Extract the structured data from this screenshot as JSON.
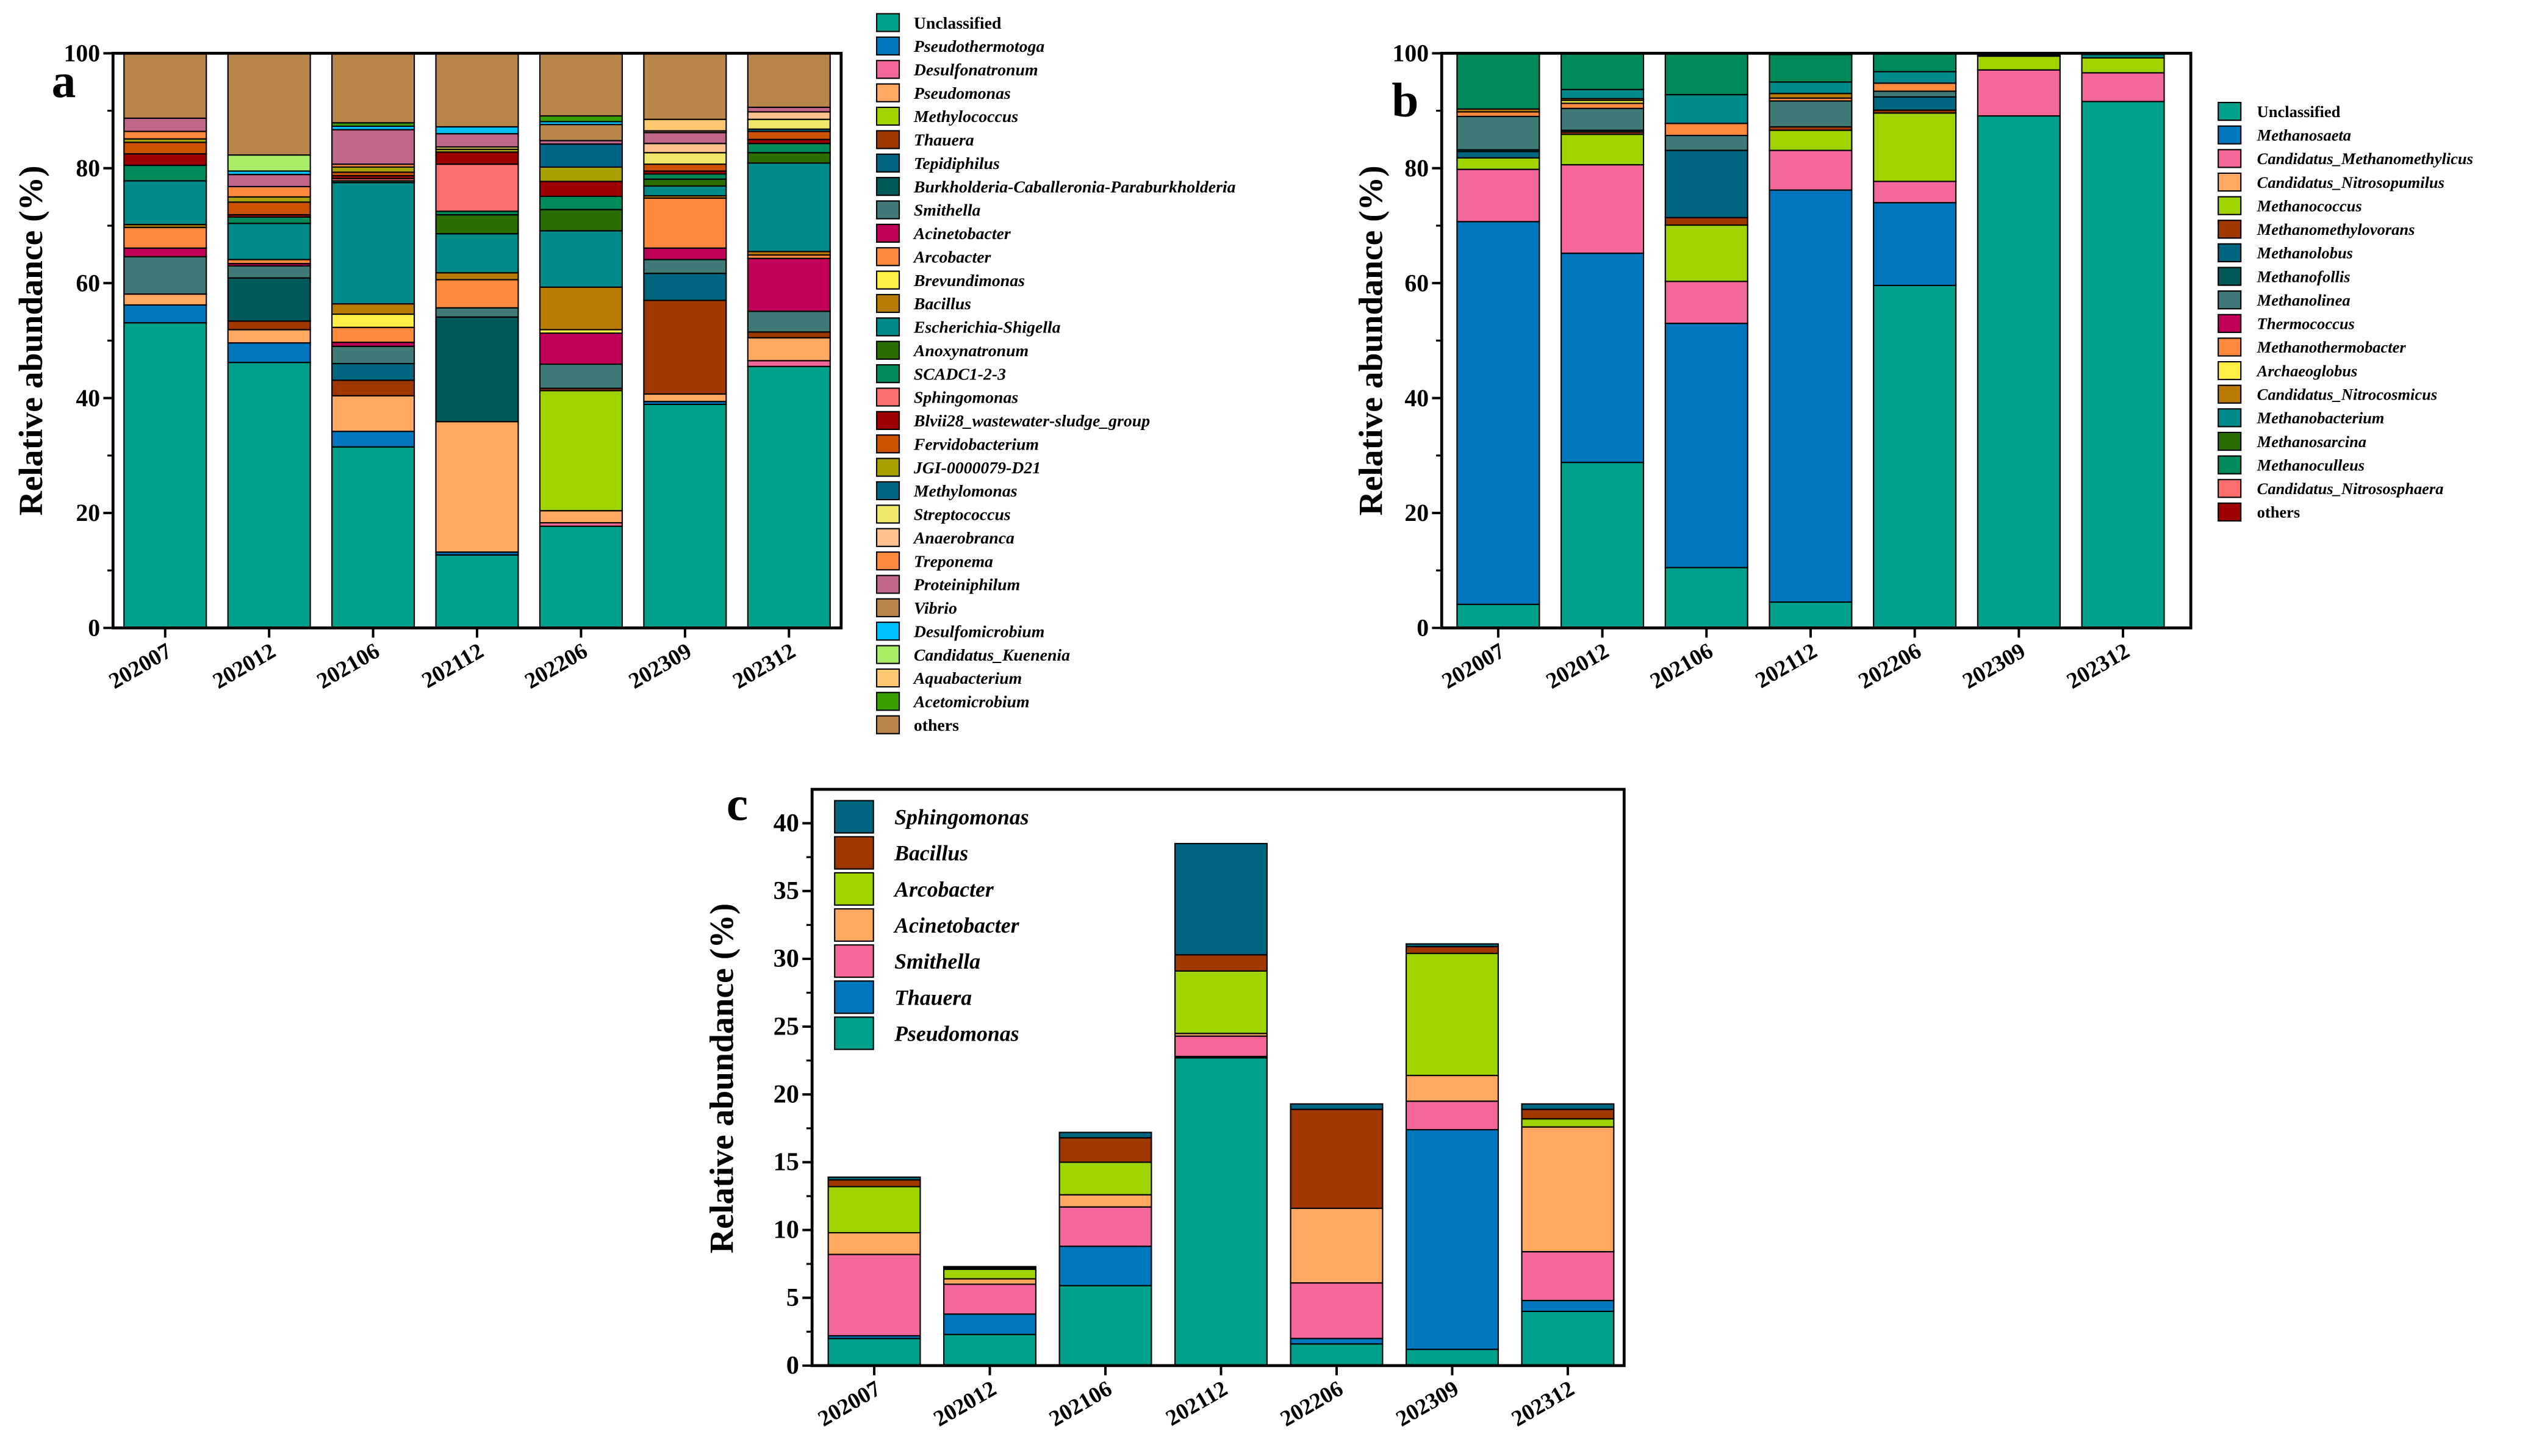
{
  "chart_data": [
    {
      "panel": "a",
      "type": "bar",
      "stacked": true,
      "ylabel": "Relative abundance (%)",
      "xlabel": "",
      "ylim": [
        0,
        100
      ],
      "yticks": [
        0,
        20,
        40,
        60,
        80,
        100
      ],
      "categories": [
        "202007",
        "202012",
        "202106",
        "202112",
        "202206",
        "202309",
        "202312"
      ],
      "legend_position": "right",
      "series": [
        {
          "name": "Unclassified",
          "italic": false,
          "color": "#00A08A",
          "values": [
            53.1,
            46.2,
            31.5,
            12.7,
            17.7,
            38.9,
            45.5
          ]
        },
        {
          "name": "Pseudothermotoga",
          "italic": true,
          "color": "#0077BD",
          "values": [
            3.1,
            3.4,
            2.7,
            0.5,
            0,
            0.5,
            0
          ]
        },
        {
          "name": "Desulfonatronum",
          "italic": true,
          "color": "#F4679A",
          "values": [
            0,
            0,
            0,
            0,
            0.6,
            0,
            1.0
          ]
        },
        {
          "name": "Pseudomonas",
          "italic": true,
          "color": "#FFA862",
          "values": [
            1.9,
            2.3,
            6.2,
            22.7,
            2.1,
            1.3,
            4.0
          ]
        },
        {
          "name": "Methylococcus",
          "italic": true,
          "color": "#A0D400",
          "values": [
            0,
            0,
            0,
            0,
            20.9,
            0,
            0
          ]
        },
        {
          "name": "Thauera",
          "italic": true,
          "color": "#9E3700",
          "values": [
            0,
            1.5,
            2.7,
            0,
            0.4,
            16.3,
            1.0
          ]
        },
        {
          "name": "Tepidiphilus",
          "italic": true,
          "color": "#006680",
          "values": [
            0,
            0,
            2.9,
            0,
            0,
            4.7,
            0
          ]
        },
        {
          "name": "Burkholderia-Caballeronia-Paraburkholderia",
          "italic": true,
          "color": "#005858",
          "values": [
            0,
            7.5,
            0,
            18.2,
            0,
            0,
            0
          ]
        },
        {
          "name": "Smithella",
          "italic": true,
          "color": "#3F7A78",
          "values": [
            6.5,
            2.1,
            3.0,
            1.6,
            4.2,
            2.4,
            3.6
          ]
        },
        {
          "name": "Acinetobacter",
          "italic": true,
          "color": "#C00058",
          "values": [
            1.5,
            0.4,
            0.7,
            0,
            5.4,
            2.0,
            9.2
          ]
        },
        {
          "name": "Arcobacter",
          "italic": true,
          "color": "#FF8A3D",
          "values": [
            3.6,
            0.7,
            2.6,
            4.9,
            0,
            8.7,
            0.6
          ]
        },
        {
          "name": "Brevundimonas",
          "italic": true,
          "color": "#FFEE44",
          "values": [
            0,
            0,
            2.3,
            0,
            0.6,
            0,
            0
          ]
        },
        {
          "name": "Bacillus",
          "italic": true,
          "color": "#B87A00",
          "values": [
            0.5,
            0,
            1.8,
            1.2,
            7.4,
            0.4,
            0.6
          ]
        },
        {
          "name": "Escherichia-Shigella",
          "italic": true,
          "color": "#008A8A",
          "values": [
            7.6,
            6.3,
            21.1,
            6.8,
            9.8,
            1.7,
            15.4
          ]
        },
        {
          "name": "Anoxynatronum",
          "italic": true,
          "color": "#2A6E00",
          "values": [
            0,
            0,
            0,
            3.3,
            3.7,
            1.2,
            1.8
          ]
        },
        {
          "name": "SCADC1-2-3",
          "italic": true,
          "color": "#008A5A",
          "values": [
            2.7,
            1.1,
            0.3,
            0.6,
            2.3,
            0.9,
            1.6
          ]
        },
        {
          "name": "Sphingomonas",
          "italic": true,
          "color": "#FF6E6E",
          "values": [
            0,
            0,
            0.4,
            8.2,
            0,
            0,
            0
          ]
        },
        {
          "name": "Blvii28_wastewater-sludge_group",
          "italic": true,
          "color": "#9E0000",
          "values": [
            2.0,
            0.4,
            0.5,
            2.1,
            2.6,
            0.5,
            0.7
          ]
        },
        {
          "name": "Fervidobacterium",
          "italic": true,
          "color": "#CC5200",
          "values": [
            2.0,
            2.2,
            0.6,
            0,
            0,
            1.2,
            1.4
          ]
        },
        {
          "name": "JGI-0000079-D21",
          "italic": true,
          "color": "#A8A000",
          "values": [
            0.6,
            0.9,
            0.9,
            0.5,
            2.5,
            0,
            0
          ]
        },
        {
          "name": "Methylomonas",
          "italic": true,
          "color": "#006688",
          "values": [
            0,
            0,
            0,
            0,
            4.0,
            0,
            0.4
          ]
        },
        {
          "name": "Streptococcus",
          "italic": true,
          "color": "#F0E66A",
          "values": [
            0,
            0,
            0,
            0.4,
            0,
            2.0,
            1.7
          ]
        },
        {
          "name": "Anaerobranca",
          "italic": true,
          "color": "#FFC090",
          "values": [
            0,
            0,
            0,
            0,
            0,
            1.6,
            1.3
          ]
        },
        {
          "name": "Treponema",
          "italic": true,
          "color": "#FF8A3D",
          "values": [
            1.3,
            1.8,
            0.5,
            0,
            0,
            0,
            0
          ]
        },
        {
          "name": "Proteiniphilum",
          "italic": true,
          "color": "#BF668A",
          "values": [
            2.3,
            2.1,
            6.0,
            2.3,
            0.6,
            1.9,
            0.8
          ]
        },
        {
          "name": "Vibrio",
          "italic": true,
          "color": "#B8864B",
          "values": [
            0,
            0,
            0,
            0,
            2.8,
            0.3,
            0
          ]
        },
        {
          "name": "Desulfomicrobium",
          "italic": true,
          "color": "#00C0FF",
          "values": [
            0,
            0.6,
            0.6,
            1.2,
            0.5,
            0,
            0
          ]
        },
        {
          "name": "Candidatus_Kuenenia",
          "italic": true,
          "color": "#A8EE66",
          "values": [
            0,
            2.8,
            0,
            0,
            0,
            0,
            0
          ]
        },
        {
          "name": "Aquabacterium",
          "italic": true,
          "color": "#FFC870",
          "values": [
            0,
            0,
            0,
            0,
            0,
            2.0,
            0
          ]
        },
        {
          "name": "Acetomicrobium",
          "italic": true,
          "color": "#3AA000",
          "values": [
            0,
            0,
            0.6,
            0,
            1.0,
            0,
            0
          ]
        },
        {
          "name": "others",
          "italic": false,
          "color": "#B8864B",
          "values": [
            11.3,
            17.7,
            12.1,
            12.8,
            10.9,
            11.5,
            9.4
          ]
        }
      ]
    },
    {
      "panel": "b",
      "type": "bar",
      "stacked": true,
      "ylabel": "Relative abundance (%)",
      "xlabel": "",
      "ylim": [
        0,
        100
      ],
      "yticks": [
        0,
        20,
        40,
        60,
        80,
        100
      ],
      "categories": [
        "202007",
        "202012",
        "202106",
        "202112",
        "202206",
        "202309",
        "202312"
      ],
      "legend_position": "right",
      "series": [
        {
          "name": "Unclassified",
          "italic": false,
          "color": "#00A08A",
          "values": [
            4.1,
            28.8,
            10.5,
            4.5,
            59.6,
            89.1,
            91.6
          ]
        },
        {
          "name": "Methanosaeta",
          "italic": true,
          "color": "#0077BD",
          "values": [
            66.6,
            36.4,
            42.5,
            71.7,
            14.4,
            0,
            0
          ]
        },
        {
          "name": "Candidatus_Methanomethylicus",
          "italic": true,
          "color": "#F4679A",
          "values": [
            9.1,
            15.4,
            7.3,
            6.9,
            3.7,
            8.0,
            5.0
          ]
        },
        {
          "name": "Candidatus_Nitrosopumilus",
          "italic": true,
          "color": "#FFA862",
          "values": [
            0,
            0,
            0,
            0,
            0,
            0,
            0
          ]
        },
        {
          "name": "Methanococcus",
          "italic": true,
          "color": "#A0D400",
          "values": [
            2.0,
            5.3,
            9.8,
            3.5,
            11.9,
            2.4,
            2.6
          ]
        },
        {
          "name": "Methanomethylovorans",
          "italic": true,
          "color": "#9E3700",
          "values": [
            0,
            0.4,
            1.3,
            0.6,
            0.5,
            0,
            0
          ]
        },
        {
          "name": "Methanolobus",
          "italic": true,
          "color": "#006680",
          "values": [
            1.1,
            0,
            11.7,
            0,
            2.3,
            0.2,
            0
          ]
        },
        {
          "name": "Methanofollis",
          "italic": true,
          "color": "#005858",
          "values": [
            0.3,
            0.3,
            0,
            0,
            0,
            0,
            0
          ]
        },
        {
          "name": "Methanolinea",
          "italic": true,
          "color": "#3F7A78",
          "values": [
            5.8,
            3.8,
            2.6,
            4.5,
            1.0,
            0,
            0
          ]
        },
        {
          "name": "Thermococcus",
          "italic": true,
          "color": "#C00058",
          "values": [
            0,
            0,
            0,
            0,
            0,
            0,
            0
          ]
        },
        {
          "name": "Methanothermobacter",
          "italic": true,
          "color": "#FF8A3D",
          "values": [
            0.8,
            0.9,
            2.1,
            0.5,
            1.4,
            0,
            0
          ]
        },
        {
          "name": "Archaeoglobus",
          "italic": true,
          "color": "#FFEE44",
          "values": [
            0,
            0.5,
            0,
            0,
            0,
            0,
            0
          ]
        },
        {
          "name": "Candidatus_Nitrocosmicus",
          "italic": true,
          "color": "#B87A00",
          "values": [
            0.5,
            0.3,
            0,
            0.8,
            0,
            0,
            0
          ]
        },
        {
          "name": "Methanobacterium",
          "italic": true,
          "color": "#008A8A",
          "values": [
            0,
            1.6,
            5.0,
            2.0,
            2.0,
            0.3,
            0.6
          ]
        },
        {
          "name": "Methanosarcina",
          "italic": true,
          "color": "#2A6E00",
          "values": [
            0,
            0,
            0,
            0,
            0,
            0,
            0
          ]
        },
        {
          "name": "Methanoculleus",
          "italic": true,
          "color": "#008A5A",
          "values": [
            9.6,
            6.3,
            7.2,
            4.8,
            3.1,
            0,
            0
          ]
        },
        {
          "name": "Candidatus_Nitrososphaera",
          "italic": true,
          "color": "#FF6E6E",
          "values": [
            0,
            0,
            0,
            0,
            0,
            0,
            0
          ]
        },
        {
          "name": "others",
          "italic": false,
          "color": "#9E0000",
          "values": [
            0.1,
            0,
            0,
            0.2,
            0,
            0,
            0.2
          ]
        }
      ]
    },
    {
      "panel": "c",
      "type": "bar",
      "stacked": true,
      "ylabel": "Relative abundance (%)",
      "xlabel": "",
      "ylim": [
        0,
        42.5
      ],
      "yticks": [
        0,
        5,
        10,
        15,
        20,
        25,
        30,
        35,
        40
      ],
      "categories": [
        "202007",
        "202012",
        "202106",
        "202112",
        "202206",
        "202309",
        "202312"
      ],
      "legend_position": "top-left",
      "legend_order": "reversed",
      "series": [
        {
          "name": "Pseudomonas",
          "italic": true,
          "color": "#00A08A",
          "values": [
            2.0,
            2.3,
            5.9,
            22.7,
            1.6,
            1.2,
            4.0
          ]
        },
        {
          "name": "Thauera",
          "italic": true,
          "color": "#0077BD",
          "values": [
            0.2,
            1.5,
            2.9,
            0.1,
            0.4,
            16.2,
            0.8
          ]
        },
        {
          "name": "Smithella",
          "italic": true,
          "color": "#F4679A",
          "values": [
            6.0,
            2.2,
            2.9,
            1.5,
            4.1,
            2.1,
            3.6
          ]
        },
        {
          "name": "Acinetobacter",
          "italic": true,
          "color": "#FFA862",
          "values": [
            1.6,
            0.4,
            0.9,
            0.2,
            5.5,
            1.9,
            9.2
          ]
        },
        {
          "name": "Arcobacter",
          "italic": true,
          "color": "#A0D400",
          "values": [
            3.4,
            0.7,
            2.4,
            4.6,
            0.0,
            9.0,
            0.6
          ]
        },
        {
          "name": "Bacillus",
          "italic": true,
          "color": "#9E3700",
          "values": [
            0.5,
            0.1,
            1.8,
            1.2,
            7.3,
            0.5,
            0.7
          ]
        },
        {
          "name": "Sphingomonas",
          "italic": true,
          "color": "#006680",
          "values": [
            0.2,
            0.1,
            0.4,
            8.2,
            0.4,
            0.2,
            0.4
          ]
        }
      ]
    }
  ]
}
